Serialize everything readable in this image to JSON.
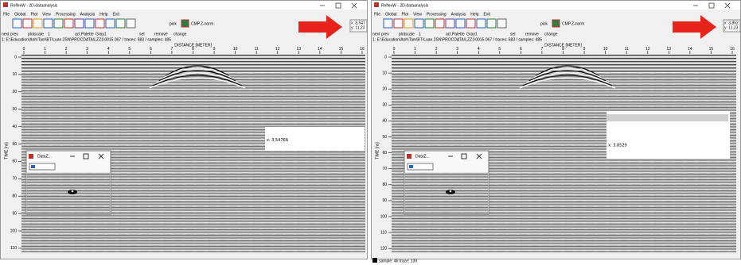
{
  "windows": [
    {
      "title": "ReflexW - 2D-dataanalysis",
      "menu": [
        "File",
        "Global",
        "Plot",
        "View",
        "Processing",
        "Analysis",
        "Help",
        "Exit"
      ],
      "toolbar_labels": [
        "pick",
        "CMP",
        "Z-norm"
      ],
      "controls": {
        "next": "next",
        "prev": "prev",
        "plotscale": "plotscale",
        "plotscale_value": "1",
        "palette": "act.Palette",
        "palette_value": "Gray1",
        "set": "set",
        "remove": "remove",
        "change": "change"
      },
      "path": "1: E:\\Education\\Anh\\Tam\\BT\\Luan.2SN\\PROCDATA\\LZZ1\\0015.067 / traces: 583 / samples: 485",
      "coords": [
        "x: 3,547",
        "y: 11,23"
      ],
      "x_label": "DISTANCE [METER]",
      "y_label": "TIME [ns]",
      "x_ticks": [
        0,
        1,
        2,
        3,
        4,
        5,
        6,
        7,
        8,
        9,
        10,
        11,
        12,
        13,
        14,
        15,
        16
      ],
      "y_ticks": [
        0,
        10,
        20,
        30,
        40,
        50,
        60,
        70,
        80,
        90,
        100,
        110
      ],
      "zoom_label": "x: 3,54768",
      "popup_title": "DataZ..."
    },
    {
      "title": "ReflexW - 2D-dataanalysis",
      "menu": [
        "File",
        "Global",
        "Plot",
        "View",
        "Processing",
        "Analysis",
        "Help",
        "Exit"
      ],
      "toolbar_labels": [
        "pick",
        "CMP",
        "Z-norm"
      ],
      "controls": {
        "next": "next",
        "prev": "prev",
        "plotscale": "plotscale",
        "plotscale_value": "1",
        "palette": "act.Palette",
        "palette_value": "Gray1",
        "set": "set",
        "remove": "remove",
        "change": "change"
      },
      "path": "1: E:\\Education\\Anh\\Tam\\BT\\Luan.2SN\\PROCDATA\\LZZ1\\0015.067 / traces: 583 / samples: 485",
      "coords": [
        "x: 3,852",
        "y: 11,23"
      ],
      "x_label": "DISTANCE [METER]",
      "y_label": "TIME [ns]",
      "x_ticks": [
        0,
        1,
        2,
        3,
        4,
        5,
        6,
        7,
        8,
        9,
        10,
        11,
        12,
        13,
        14,
        15,
        16
      ],
      "y_ticks": [
        0,
        10,
        20,
        30,
        40,
        50,
        60,
        70,
        80,
        90,
        100,
        110,
        120
      ],
      "zoom_label": "x: 3,8529",
      "popup_title": "DataZ...",
      "status": "sample: 46 trace: 139"
    }
  ]
}
